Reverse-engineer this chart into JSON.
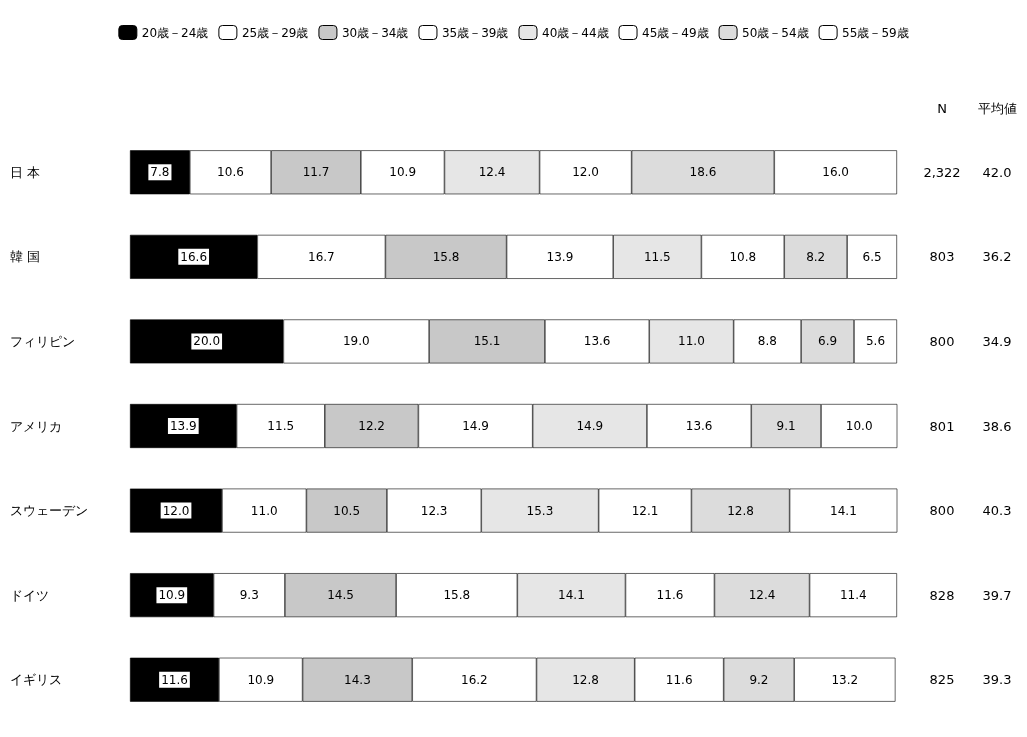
{
  "chart_data": {
    "type": "bar",
    "orientation": "horizontal",
    "stacked": true,
    "legend": "top",
    "tick_labels": "y",
    "xlim": [
      0,
      100
    ],
    "categories": [
      "日 本",
      "韓 国",
      "フィリピン",
      "アメリカ",
      "スウェーデン",
      "ドイツ",
      "イギリス"
    ],
    "series": [
      {
        "name": "20歳－24歳",
        "color": "#000000",
        "values": [
          7.8,
          16.6,
          20.0,
          13.9,
          12.0,
          10.9,
          11.6
        ],
        "value_labels": [
          "7.8",
          "16.6",
          "20.0",
          "13.9",
          "12.0",
          "10.9",
          "11.6"
        ]
      },
      {
        "name": "25歳－29歳",
        "color": "#ffffff",
        "values": [
          10.6,
          16.7,
          19.0,
          11.5,
          11.0,
          9.3,
          10.9
        ],
        "value_labels": [
          "10.6",
          "16.7",
          "19.0",
          "11.5",
          "11.0",
          "9.3",
          "10.9"
        ]
      },
      {
        "name": "30歳－34歳",
        "color": "#c8c8c8",
        "values": [
          11.7,
          15.8,
          15.1,
          12.2,
          10.5,
          14.5,
          14.3
        ],
        "value_labels": [
          "11.7",
          "15.8",
          "15.1",
          "12.2",
          "10.5",
          "14.5",
          "14.3"
        ]
      },
      {
        "name": "35歳－39歳",
        "color": "#ffffff",
        "values": [
          10.9,
          13.9,
          13.6,
          14.9,
          12.3,
          15.8,
          16.2
        ],
        "value_labels": [
          "10.9",
          "13.9",
          "13.6",
          "14.9",
          "12.3",
          "15.8",
          "16.2"
        ]
      },
      {
        "name": "40歳－44歳",
        "color": "#e6e6e6",
        "values": [
          12.4,
          11.5,
          11.0,
          14.9,
          15.3,
          14.1,
          12.8
        ],
        "value_labels": [
          "12.4",
          "11.5",
          "11.0",
          "14.9",
          "15.3",
          "14.1",
          "12.8"
        ]
      },
      {
        "name": "45歳－49歳",
        "color": "#ffffff",
        "values": [
          12.0,
          10.8,
          8.8,
          13.6,
          12.1,
          11.6,
          11.6
        ],
        "value_labels": [
          "12.0",
          "10.8",
          "8.8",
          "13.6",
          "12.1",
          "11.6",
          "11.6"
        ]
      },
      {
        "name": "50歳－54歳",
        "color": "#dcdcdc",
        "values": [
          18.6,
          8.2,
          6.9,
          9.1,
          12.8,
          12.4,
          9.2
        ],
        "value_labels": [
          "18.6",
          "8.2",
          "6.9",
          "9.1",
          "12.8",
          "12.4",
          "9.2"
        ]
      },
      {
        "name": "55歳－59歳",
        "color": "#ffffff",
        "values": [
          16.0,
          6.5,
          5.6,
          10.0,
          14.1,
          11.4,
          13.2
        ],
        "value_labels": [
          "16.0",
          "6.5",
          "5.6",
          "10.0",
          "14.1",
          "11.4",
          "13.2"
        ]
      }
    ],
    "annotations": [
      "N",
      "平均値",
      "2,322",
      "42.0",
      "803",
      "36.2",
      "800",
      "34.9",
      "801",
      "38.6",
      "800",
      "40.3",
      "828",
      "39.7",
      "825",
      "39.3"
    ]
  }
}
